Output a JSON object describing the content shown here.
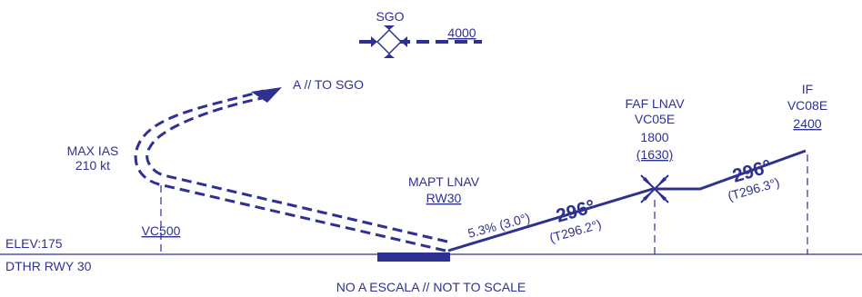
{
  "colors": {
    "ink": "#2e3192",
    "background": "#ffffff"
  },
  "sgo": {
    "name": "SGO",
    "altitude": "4000"
  },
  "missed": {
    "label": "A // TO SGO",
    "max_ias_line1": "MAX IAS",
    "max_ias_line2": "210 kt",
    "fix": "VC500"
  },
  "mapt": {
    "line1": "MAPT LNAV",
    "line2": "RW30"
  },
  "final": {
    "gradient": "5.3% (3.0°)"
  },
  "course_lower": {
    "magnetic": "296°",
    "true": "(T296.2°)"
  },
  "faf": {
    "line1": "FAF LNAV",
    "line2": "VC05E",
    "altitude": "1800",
    "height": "(1630)"
  },
  "course_upper": {
    "magnetic": "296°",
    "true": "(T296.3°)"
  },
  "if_fix": {
    "line1": "IF",
    "line2": "VC08E",
    "altitude": "2400"
  },
  "airport": {
    "elevation": "ELEV:175",
    "threshold": "DTHR RWY 30"
  },
  "footer": {
    "scale_note": "NO A ESCALA // NOT TO SCALE"
  },
  "icons": [
    "vor-dme-icon",
    "faf-maltese-cross-icon",
    "arrow-head-icon",
    "runway-bar-icon"
  ]
}
